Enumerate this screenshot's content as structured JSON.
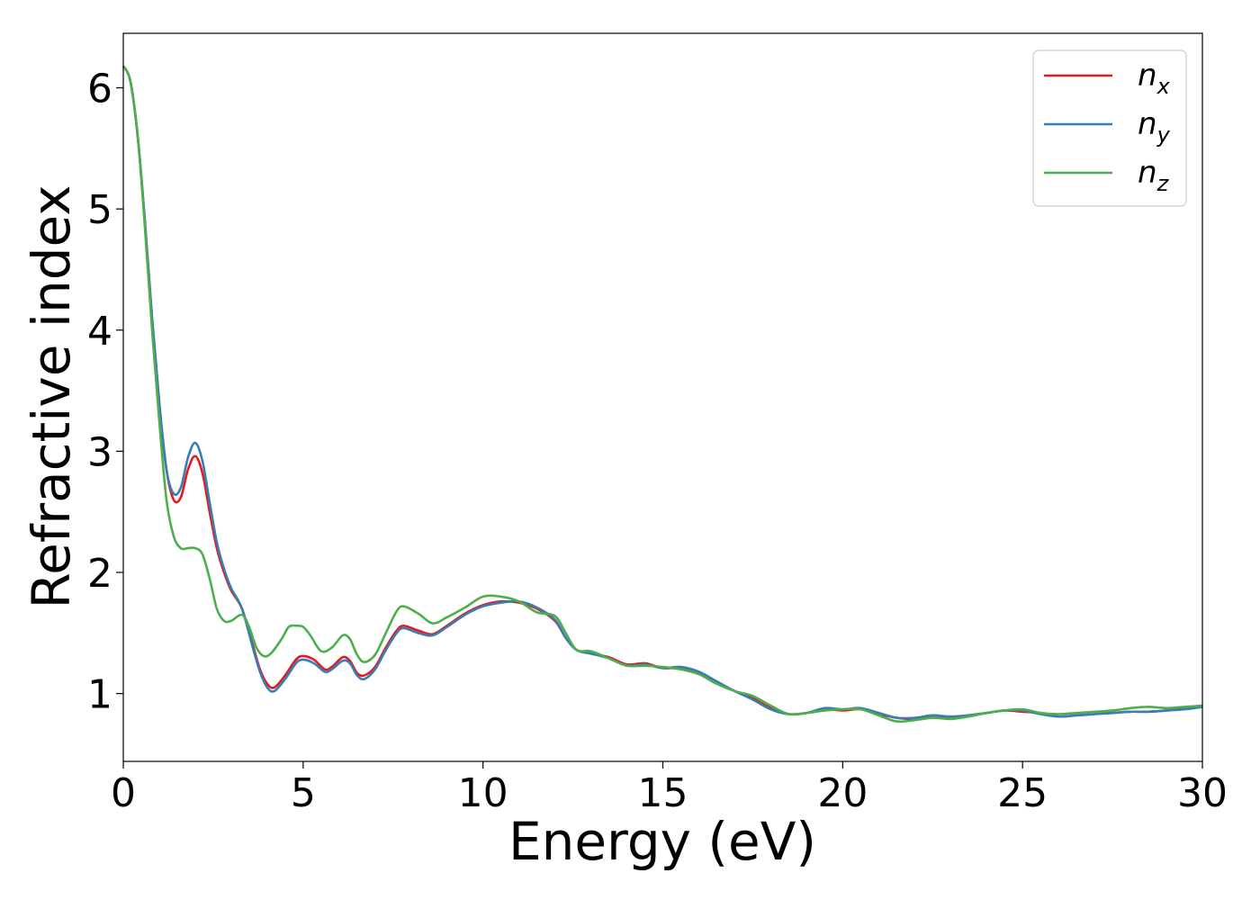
{
  "chart_data": {
    "type": "line",
    "xlabel": "Energy (eV)",
    "ylabel": "Refractive index",
    "xlim": [
      0,
      30
    ],
    "ylim": [
      0.44,
      6.45
    ],
    "xticks": [
      0,
      5,
      10,
      15,
      20,
      25,
      30
    ],
    "xtick_labels": [
      "0",
      "5",
      "10",
      "15",
      "20",
      "25",
      "30"
    ],
    "yticks": [
      1,
      2,
      3,
      4,
      5,
      6
    ],
    "ytick_labels": [
      "1",
      "2",
      "3",
      "4",
      "5",
      "6"
    ],
    "grid": false,
    "legend_position": "top-right",
    "series": [
      {
        "name": "n_x",
        "label_base": "n",
        "label_sub": "x",
        "color": "#e41a1c",
        "points": [
          [
            0,
            6.18
          ],
          [
            0.2,
            6.05
          ],
          [
            0.4,
            5.6
          ],
          [
            0.6,
            4.9
          ],
          [
            0.8,
            4.1
          ],
          [
            1.0,
            3.4
          ],
          [
            1.2,
            2.85
          ],
          [
            1.4,
            2.6
          ],
          [
            1.6,
            2.62
          ],
          [
            1.8,
            2.85
          ],
          [
            2.0,
            2.96
          ],
          [
            2.2,
            2.82
          ],
          [
            2.4,
            2.5
          ],
          [
            2.6,
            2.2
          ],
          [
            2.8,
            2.0
          ],
          [
            3.0,
            1.85
          ],
          [
            3.3,
            1.7
          ],
          [
            3.6,
            1.4
          ],
          [
            3.8,
            1.2
          ],
          [
            4.0,
            1.08
          ],
          [
            4.2,
            1.05
          ],
          [
            4.5,
            1.15
          ],
          [
            4.8,
            1.28
          ],
          [
            5.0,
            1.31
          ],
          [
            5.3,
            1.28
          ],
          [
            5.6,
            1.2
          ],
          [
            5.8,
            1.22
          ],
          [
            6.1,
            1.3
          ],
          [
            6.3,
            1.27
          ],
          [
            6.5,
            1.17
          ],
          [
            6.7,
            1.15
          ],
          [
            7.0,
            1.22
          ],
          [
            7.3,
            1.38
          ],
          [
            7.6,
            1.52
          ],
          [
            7.8,
            1.56
          ],
          [
            8.2,
            1.52
          ],
          [
            8.6,
            1.49
          ],
          [
            9.0,
            1.56
          ],
          [
            9.5,
            1.66
          ],
          [
            10.0,
            1.73
          ],
          [
            10.5,
            1.76
          ],
          [
            11.0,
            1.75
          ],
          [
            11.5,
            1.7
          ],
          [
            12.0,
            1.6
          ],
          [
            12.3,
            1.46
          ],
          [
            12.6,
            1.36
          ],
          [
            13.0,
            1.33
          ],
          [
            13.5,
            1.3
          ],
          [
            14.0,
            1.24
          ],
          [
            14.5,
            1.25
          ],
          [
            15.0,
            1.21
          ],
          [
            15.5,
            1.21
          ],
          [
            16.0,
            1.17
          ],
          [
            16.5,
            1.09
          ],
          [
            17.0,
            1.02
          ],
          [
            17.5,
            0.96
          ],
          [
            18.0,
            0.88
          ],
          [
            18.5,
            0.83
          ],
          [
            19.0,
            0.84
          ],
          [
            19.5,
            0.87
          ],
          [
            20.0,
            0.86
          ],
          [
            20.5,
            0.87
          ],
          [
            21.0,
            0.83
          ],
          [
            21.5,
            0.8
          ],
          [
            22.0,
            0.79
          ],
          [
            22.5,
            0.81
          ],
          [
            23.0,
            0.8
          ],
          [
            23.5,
            0.82
          ],
          [
            24.0,
            0.84
          ],
          [
            24.5,
            0.86
          ],
          [
            25.0,
            0.85
          ],
          [
            25.5,
            0.84
          ],
          [
            26.0,
            0.81
          ],
          [
            26.5,
            0.82
          ],
          [
            27.0,
            0.83
          ],
          [
            27.5,
            0.84
          ],
          [
            28.0,
            0.85
          ],
          [
            28.5,
            0.85
          ],
          [
            29.0,
            0.86
          ],
          [
            29.5,
            0.88
          ],
          [
            30.0,
            0.9
          ]
        ]
      },
      {
        "name": "n_y",
        "label_base": "n",
        "label_sub": "y",
        "color": "#377eb8",
        "points": [
          [
            0,
            6.18
          ],
          [
            0.2,
            6.05
          ],
          [
            0.4,
            5.6
          ],
          [
            0.6,
            4.9
          ],
          [
            0.8,
            4.1
          ],
          [
            1.0,
            3.4
          ],
          [
            1.2,
            2.85
          ],
          [
            1.4,
            2.65
          ],
          [
            1.6,
            2.7
          ],
          [
            1.8,
            2.95
          ],
          [
            2.0,
            3.07
          ],
          [
            2.2,
            2.92
          ],
          [
            2.4,
            2.58
          ],
          [
            2.6,
            2.25
          ],
          [
            2.8,
            2.03
          ],
          [
            3.0,
            1.87
          ],
          [
            3.3,
            1.7
          ],
          [
            3.6,
            1.38
          ],
          [
            3.8,
            1.18
          ],
          [
            4.0,
            1.05
          ],
          [
            4.2,
            1.02
          ],
          [
            4.5,
            1.12
          ],
          [
            4.8,
            1.25
          ],
          [
            5.0,
            1.28
          ],
          [
            5.3,
            1.25
          ],
          [
            5.6,
            1.18
          ],
          [
            5.8,
            1.2
          ],
          [
            6.1,
            1.27
          ],
          [
            6.3,
            1.25
          ],
          [
            6.5,
            1.15
          ],
          [
            6.7,
            1.12
          ],
          [
            7.0,
            1.2
          ],
          [
            7.3,
            1.36
          ],
          [
            7.6,
            1.5
          ],
          [
            7.8,
            1.54
          ],
          [
            8.2,
            1.5
          ],
          [
            8.6,
            1.48
          ],
          [
            9.0,
            1.55
          ],
          [
            9.5,
            1.65
          ],
          [
            10.0,
            1.72
          ],
          [
            10.5,
            1.75
          ],
          [
            11.0,
            1.76
          ],
          [
            11.5,
            1.71
          ],
          [
            12.0,
            1.61
          ],
          [
            12.3,
            1.46
          ],
          [
            12.6,
            1.36
          ],
          [
            13.0,
            1.33
          ],
          [
            13.5,
            1.29
          ],
          [
            14.0,
            1.23
          ],
          [
            14.5,
            1.24
          ],
          [
            15.0,
            1.21
          ],
          [
            15.5,
            1.22
          ],
          [
            16.0,
            1.18
          ],
          [
            16.5,
            1.1
          ],
          [
            17.0,
            1.02
          ],
          [
            17.5,
            0.95
          ],
          [
            18.0,
            0.87
          ],
          [
            18.5,
            0.83
          ],
          [
            19.0,
            0.84
          ],
          [
            19.5,
            0.88
          ],
          [
            20.0,
            0.87
          ],
          [
            20.5,
            0.88
          ],
          [
            21.0,
            0.84
          ],
          [
            21.5,
            0.8
          ],
          [
            22.0,
            0.8
          ],
          [
            22.5,
            0.82
          ],
          [
            23.0,
            0.81
          ],
          [
            23.5,
            0.82
          ],
          [
            24.0,
            0.84
          ],
          [
            24.5,
            0.86
          ],
          [
            25.0,
            0.86
          ],
          [
            25.5,
            0.83
          ],
          [
            26.0,
            0.81
          ],
          [
            26.5,
            0.82
          ],
          [
            27.0,
            0.83
          ],
          [
            27.5,
            0.84
          ],
          [
            28.0,
            0.85
          ],
          [
            28.5,
            0.85
          ],
          [
            29.0,
            0.86
          ],
          [
            29.5,
            0.87
          ],
          [
            30.0,
            0.89
          ]
        ]
      },
      {
        "name": "n_z",
        "label_base": "n",
        "label_sub": "z",
        "color": "#4daf4a",
        "points": [
          [
            0,
            6.18
          ],
          [
            0.2,
            6.05
          ],
          [
            0.4,
            5.6
          ],
          [
            0.6,
            4.85
          ],
          [
            0.8,
            4.0
          ],
          [
            1.0,
            3.25
          ],
          [
            1.2,
            2.6
          ],
          [
            1.4,
            2.3
          ],
          [
            1.6,
            2.2
          ],
          [
            1.8,
            2.2
          ],
          [
            2.0,
            2.2
          ],
          [
            2.2,
            2.15
          ],
          [
            2.4,
            1.95
          ],
          [
            2.6,
            1.7
          ],
          [
            2.8,
            1.6
          ],
          [
            3.0,
            1.6
          ],
          [
            3.3,
            1.65
          ],
          [
            3.5,
            1.55
          ],
          [
            3.7,
            1.38
          ],
          [
            3.9,
            1.31
          ],
          [
            4.1,
            1.33
          ],
          [
            4.4,
            1.45
          ],
          [
            4.6,
            1.55
          ],
          [
            4.8,
            1.56
          ],
          [
            5.0,
            1.55
          ],
          [
            5.2,
            1.48
          ],
          [
            5.5,
            1.35
          ],
          [
            5.8,
            1.38
          ],
          [
            6.1,
            1.48
          ],
          [
            6.3,
            1.45
          ],
          [
            6.5,
            1.32
          ],
          [
            6.7,
            1.26
          ],
          [
            7.0,
            1.32
          ],
          [
            7.3,
            1.5
          ],
          [
            7.6,
            1.68
          ],
          [
            7.8,
            1.72
          ],
          [
            8.2,
            1.66
          ],
          [
            8.6,
            1.58
          ],
          [
            9.0,
            1.63
          ],
          [
            9.5,
            1.71
          ],
          [
            10.0,
            1.8
          ],
          [
            10.5,
            1.8
          ],
          [
            11.0,
            1.76
          ],
          [
            11.5,
            1.67
          ],
          [
            12.0,
            1.64
          ],
          [
            12.3,
            1.5
          ],
          [
            12.6,
            1.36
          ],
          [
            13.0,
            1.35
          ],
          [
            13.5,
            1.29
          ],
          [
            14.0,
            1.23
          ],
          [
            14.5,
            1.23
          ],
          [
            15.0,
            1.22
          ],
          [
            15.5,
            1.2
          ],
          [
            16.0,
            1.16
          ],
          [
            16.5,
            1.08
          ],
          [
            17.0,
            1.02
          ],
          [
            17.5,
            0.98
          ],
          [
            18.0,
            0.9
          ],
          [
            18.5,
            0.83
          ],
          [
            19.0,
            0.84
          ],
          [
            19.5,
            0.86
          ],
          [
            20.0,
            0.87
          ],
          [
            20.5,
            0.87
          ],
          [
            21.0,
            0.82
          ],
          [
            21.5,
            0.77
          ],
          [
            22.0,
            0.78
          ],
          [
            22.5,
            0.8
          ],
          [
            23.0,
            0.79
          ],
          [
            23.5,
            0.81
          ],
          [
            24.0,
            0.84
          ],
          [
            24.5,
            0.86
          ],
          [
            25.0,
            0.87
          ],
          [
            25.5,
            0.84
          ],
          [
            26.0,
            0.83
          ],
          [
            26.5,
            0.84
          ],
          [
            27.0,
            0.85
          ],
          [
            27.5,
            0.86
          ],
          [
            28.0,
            0.88
          ],
          [
            28.5,
            0.89
          ],
          [
            29.0,
            0.88
          ],
          [
            29.5,
            0.89
          ],
          [
            30.0,
            0.9
          ]
        ]
      }
    ]
  }
}
